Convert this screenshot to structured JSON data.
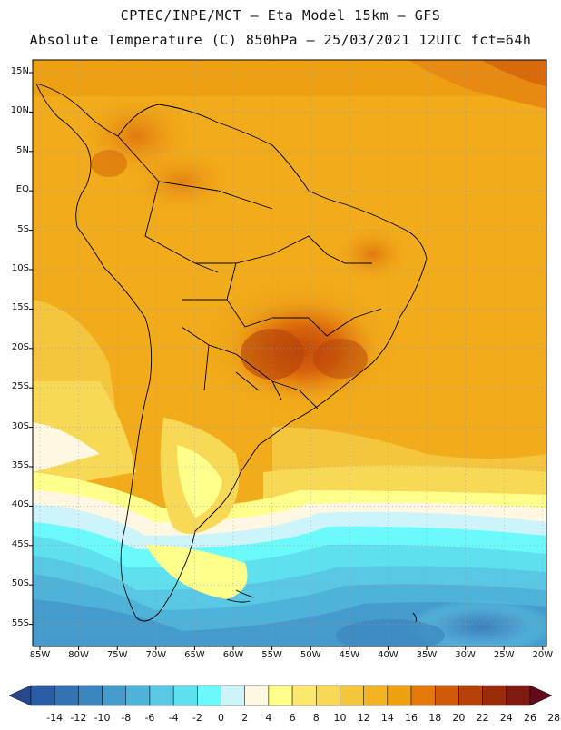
{
  "header": {
    "line1": "CPTEC/INPE/MCT –  Eta Model 15km – GFS",
    "line2": "Absolute Temperature (C) 850hPa – 25/03/2021 12UTC fct=64h"
  },
  "map": {
    "lat_labels": [
      "15N",
      "10N",
      "5N",
      "EQ",
      "5S",
      "10S",
      "15S",
      "20S",
      "25S",
      "30S",
      "35S",
      "40S",
      "45S",
      "50S",
      "55S"
    ],
    "lon_labels": [
      "85W",
      "80W",
      "75W",
      "70W",
      "65W",
      "60W",
      "55W",
      "50W",
      "45W",
      "40W",
      "35W",
      "30W",
      "25W",
      "20W"
    ],
    "gridlines": "dotted"
  },
  "colorbar": {
    "labels": [
      "-14",
      "-12",
      "-10",
      "-8",
      "-6",
      "-4",
      "-2",
      "0",
      "2",
      "4",
      "6",
      "8",
      "10",
      "12",
      "14",
      "16",
      "18",
      "20",
      "22",
      "24",
      "26",
      "28"
    ],
    "colors": [
      "#27488f",
      "#2a5ca3",
      "#3372b3",
      "#3c86bf",
      "#449bcc",
      "#4fb2d8",
      "#58c8e4",
      "#5fe0ee",
      "#6afafc",
      "#ccf4fa",
      "#fff7e2",
      "#ffff8c",
      "#fbe86c",
      "#f8d956",
      "#f5c53e",
      "#f2b324",
      "#eea013",
      "#e4780a",
      "#cf5a08",
      "#b6420a",
      "#9a2c0c",
      "#7e1a10",
      "#630a18"
    ]
  }
}
